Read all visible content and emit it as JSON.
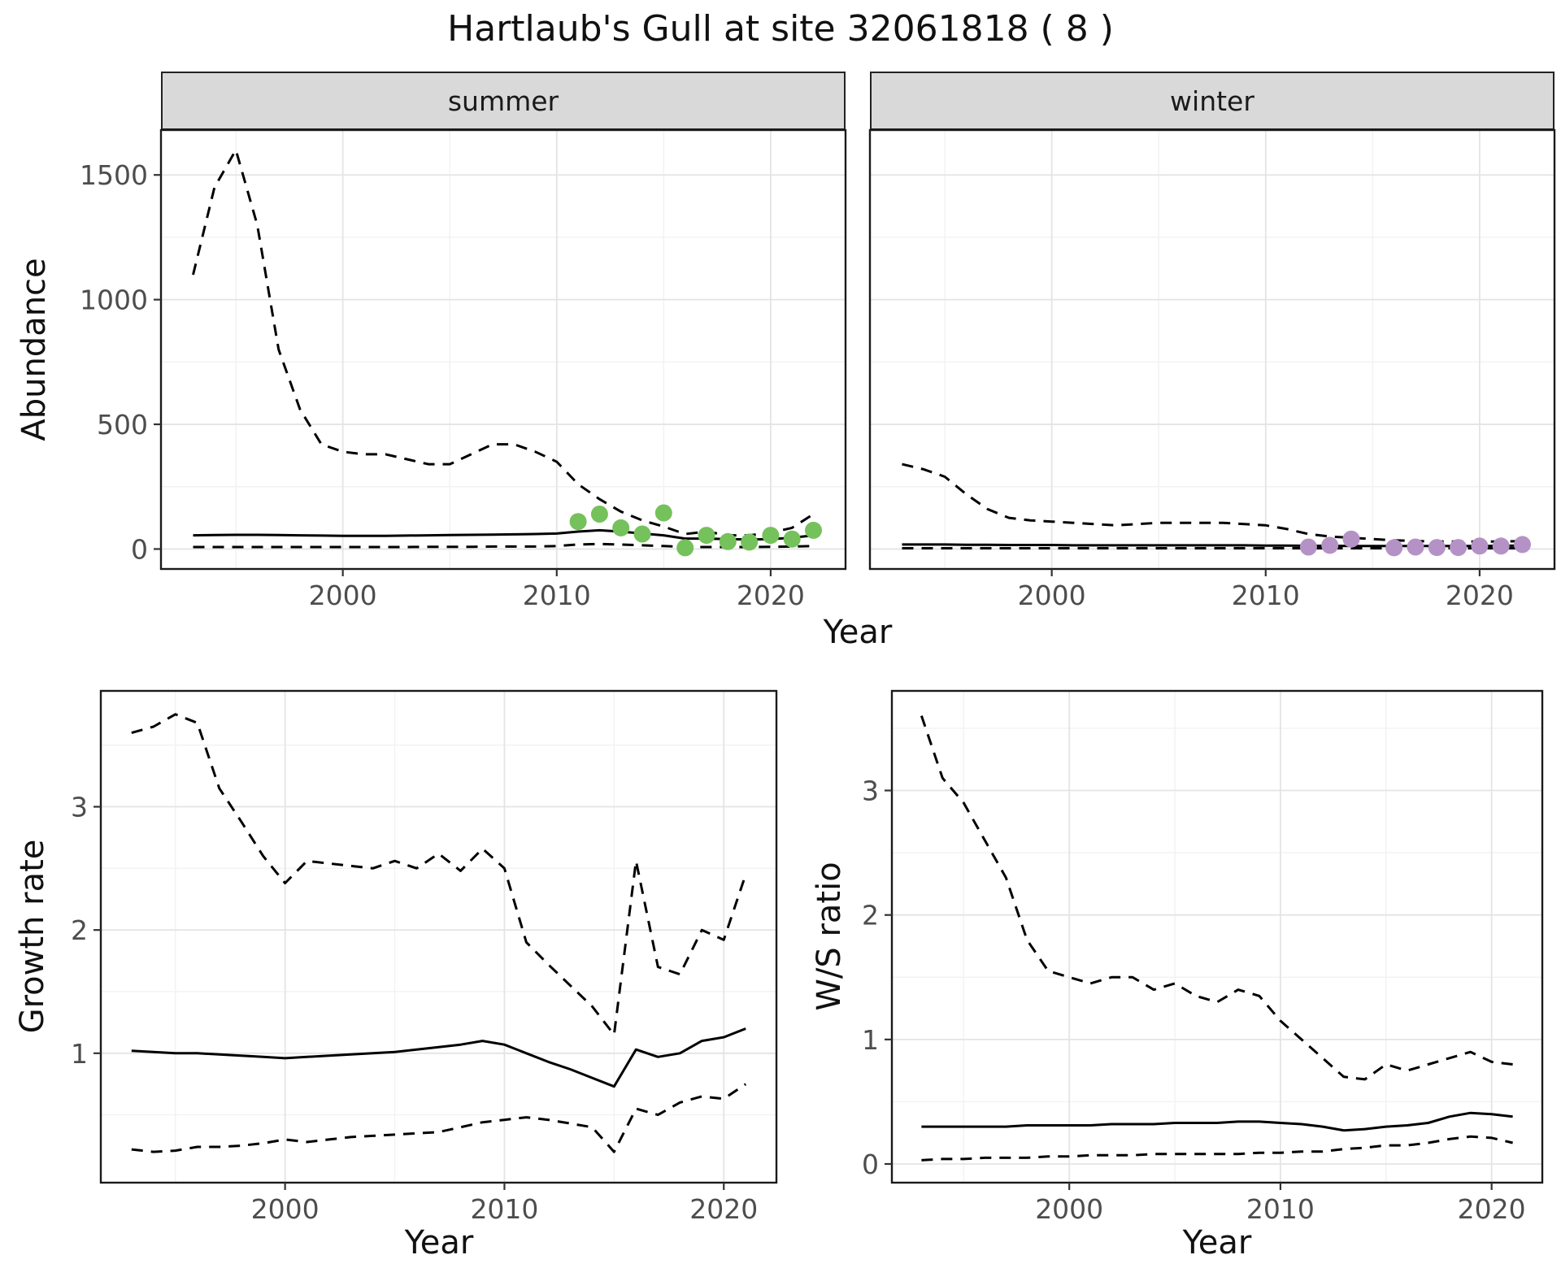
{
  "title": "Hartlaub's Gull at site 32061818 ( 8 )",
  "colors": {
    "summer_points": "#75c15c",
    "winter_points": "#b592c6",
    "lines": "#000000",
    "strip_background": "#d9d9d9"
  },
  "chart_data": [
    {
      "id": "summer",
      "type": "line",
      "facet_label": "summer",
      "xlabel": "Year",
      "ylabel": "Abundance",
      "xlim": [
        1991.5,
        2023.5
      ],
      "ylim": [
        -80,
        1680
      ],
      "xticks": [
        2000,
        2010,
        2020
      ],
      "yticks": [
        0,
        500,
        1000,
        1500
      ],
      "xticks_minor": [
        1995,
        2005,
        2015
      ],
      "yticks_minor": [
        250,
        750,
        1250
      ],
      "x": [
        1993,
        1994,
        1995,
        1996,
        1997,
        1998,
        1999,
        2000,
        2001,
        2002,
        2003,
        2004,
        2005,
        2006,
        2007,
        2008,
        2009,
        2010,
        2011,
        2012,
        2013,
        2014,
        2015,
        2016,
        2017,
        2018,
        2019,
        2020,
        2021,
        2022
      ],
      "series": [
        {
          "name": "upper_95ci",
          "style": "dashed",
          "values": [
            1100,
            1450,
            1600,
            1300,
            800,
            560,
            420,
            390,
            380,
            380,
            360,
            340,
            340,
            380,
            420,
            420,
            390,
            350,
            260,
            200,
            150,
            115,
            90,
            60,
            70,
            55,
            55,
            65,
            85,
            140
          ]
        },
        {
          "name": "median",
          "style": "solid",
          "values": [
            55,
            56,
            57,
            57,
            56,
            55,
            54,
            53,
            53,
            53,
            54,
            55,
            56,
            57,
            58,
            59,
            60,
            62,
            70,
            75,
            70,
            62,
            55,
            42,
            42,
            40,
            38,
            40,
            45,
            55
          ]
        },
        {
          "name": "lower_95ci",
          "style": "dashed",
          "values": [
            8,
            8,
            8,
            8,
            8,
            8,
            8,
            8,
            8,
            8,
            8,
            9,
            9,
            9,
            10,
            10,
            10,
            12,
            18,
            20,
            18,
            15,
            12,
            8,
            8,
            8,
            8,
            9,
            10,
            12
          ]
        }
      ],
      "points": {
        "name": "observed_counts",
        "color": "#75c15c",
        "x": [
          2011,
          2012,
          2013,
          2014,
          2015,
          2016,
          2017,
          2018,
          2019,
          2020,
          2021,
          2022
        ],
        "y": [
          110,
          140,
          85,
          60,
          145,
          5,
          55,
          30,
          28,
          55,
          40,
          75
        ]
      }
    },
    {
      "id": "winter",
      "type": "line",
      "facet_label": "winter",
      "xlabel": "Year",
      "ylabel": "Abundance",
      "xlim": [
        1991.5,
        2023.5
      ],
      "ylim": [
        -80,
        1680
      ],
      "xticks": [
        2000,
        2010,
        2020
      ],
      "yticks": [
        0,
        500,
        1000,
        1500
      ],
      "xticks_minor": [
        1995,
        2005,
        2015
      ],
      "yticks_minor": [
        250,
        750,
        1250
      ],
      "x": [
        1993,
        1994,
        1995,
        1996,
        1997,
        1998,
        1999,
        2000,
        2001,
        2002,
        2003,
        2004,
        2005,
        2006,
        2007,
        2008,
        2009,
        2010,
        2011,
        2012,
        2013,
        2014,
        2015,
        2016,
        2017,
        2018,
        2019,
        2020,
        2021,
        2022
      ],
      "series": [
        {
          "name": "upper_95ci",
          "style": "dashed",
          "values": [
            340,
            320,
            290,
            220,
            160,
            125,
            115,
            110,
            105,
            100,
            95,
            100,
            105,
            105,
            105,
            105,
            100,
            95,
            80,
            60,
            50,
            45,
            40,
            35,
            32,
            30,
            30,
            30,
            30,
            32
          ]
        },
        {
          "name": "median",
          "style": "solid",
          "values": [
            18,
            18,
            18,
            17,
            17,
            16,
            16,
            16,
            15,
            15,
            15,
            15,
            15,
            15,
            15,
            15,
            15,
            14,
            14,
            13,
            13,
            12,
            12,
            12,
            12,
            12,
            12,
            12,
            13,
            14
          ]
        },
        {
          "name": "lower_95ci",
          "style": "dashed",
          "values": [
            3,
            3,
            3,
            3,
            3,
            3,
            3,
            3,
            3,
            3,
            3,
            3,
            3,
            3,
            3,
            3,
            3,
            3,
            3,
            3,
            3,
            3,
            3,
            3,
            3,
            3,
            3,
            3,
            3,
            3
          ]
        }
      ],
      "points": {
        "name": "observed_counts",
        "color": "#b592c6",
        "x": [
          2012,
          2013,
          2014,
          2016,
          2017,
          2018,
          2019,
          2020,
          2021,
          2022
        ],
        "y": [
          8,
          15,
          40,
          5,
          8,
          6,
          6,
          12,
          12,
          18
        ]
      }
    },
    {
      "id": "growth",
      "type": "line",
      "xlabel": "Year",
      "ylabel": "Growth rate",
      "xlim": [
        1991.6,
        2022.4
      ],
      "ylim": [
        -0.05,
        3.94
      ],
      "xticks": [
        2000,
        2010,
        2020
      ],
      "yticks": [
        1,
        2,
        3
      ],
      "xticks_minor": [
        1995,
        2005,
        2015
      ],
      "yticks_minor": [
        0.5,
        1.5,
        2.5,
        3.5
      ],
      "x": [
        1993,
        1994,
        1995,
        1996,
        1997,
        1998,
        1999,
        2000,
        2001,
        2002,
        2003,
        2004,
        2005,
        2006,
        2007,
        2008,
        2009,
        2010,
        2011,
        2012,
        2013,
        2014,
        2015,
        2016,
        2017,
        2018,
        2019,
        2020,
        2021
      ],
      "series": [
        {
          "name": "upper_95ci",
          "style": "dashed",
          "values": [
            3.6,
            3.65,
            3.75,
            3.68,
            3.15,
            2.88,
            2.6,
            2.38,
            2.56,
            2.54,
            2.52,
            2.5,
            2.56,
            2.5,
            2.62,
            2.48,
            2.66,
            2.5,
            1.9,
            1.72,
            1.55,
            1.38,
            1.15,
            2.56,
            1.7,
            1.64,
            2.0,
            1.92,
            2.45
          ]
        },
        {
          "name": "median",
          "style": "solid",
          "values": [
            1.02,
            1.01,
            1.0,
            1.0,
            0.99,
            0.98,
            0.97,
            0.96,
            0.97,
            0.98,
            0.99,
            1.0,
            1.01,
            1.03,
            1.05,
            1.07,
            1.1,
            1.07,
            1.0,
            0.93,
            0.87,
            0.8,
            0.73,
            1.03,
            0.97,
            1.0,
            1.1,
            1.13,
            1.2
          ]
        },
        {
          "name": "lower_95ci",
          "style": "dashed",
          "values": [
            0.22,
            0.2,
            0.21,
            0.24,
            0.24,
            0.25,
            0.27,
            0.3,
            0.28,
            0.3,
            0.32,
            0.33,
            0.34,
            0.35,
            0.36,
            0.4,
            0.44,
            0.46,
            0.48,
            0.46,
            0.43,
            0.4,
            0.2,
            0.55,
            0.5,
            0.6,
            0.65,
            0.63,
            0.75
          ]
        }
      ]
    },
    {
      "id": "ws",
      "type": "line",
      "xlabel": "Year",
      "ylabel": "W/S ratio",
      "xlim": [
        1991.6,
        2022.4
      ],
      "ylim": [
        -0.15,
        3.8
      ],
      "xticks": [
        2000,
        2010,
        2020
      ],
      "yticks": [
        0,
        1,
        2,
        3
      ],
      "xticks_minor": [
        1995,
        2005,
        2015
      ],
      "yticks_minor": [
        0.5,
        1.5,
        2.5,
        3.5
      ],
      "x": [
        1993,
        1994,
        1995,
        1996,
        1997,
        1998,
        1999,
        2000,
        2001,
        2002,
        2003,
        2004,
        2005,
        2006,
        2007,
        2008,
        2009,
        2010,
        2011,
        2012,
        2013,
        2014,
        2015,
        2016,
        2017,
        2018,
        2019,
        2020,
        2021
      ],
      "series": [
        {
          "name": "upper_95ci",
          "style": "dashed",
          "values": [
            3.6,
            3.1,
            2.9,
            2.6,
            2.3,
            1.8,
            1.55,
            1.5,
            1.45,
            1.5,
            1.5,
            1.4,
            1.45,
            1.35,
            1.3,
            1.4,
            1.35,
            1.15,
            1.0,
            0.85,
            0.7,
            0.68,
            0.8,
            0.75,
            0.8,
            0.85,
            0.9,
            0.82,
            0.8
          ]
        },
        {
          "name": "median",
          "style": "solid",
          "values": [
            0.3,
            0.3,
            0.3,
            0.3,
            0.3,
            0.31,
            0.31,
            0.31,
            0.31,
            0.32,
            0.32,
            0.32,
            0.33,
            0.33,
            0.33,
            0.34,
            0.34,
            0.33,
            0.32,
            0.3,
            0.27,
            0.28,
            0.3,
            0.31,
            0.33,
            0.38,
            0.41,
            0.4,
            0.38
          ]
        },
        {
          "name": "lower_95ci",
          "style": "dashed",
          "values": [
            0.03,
            0.04,
            0.04,
            0.05,
            0.05,
            0.05,
            0.06,
            0.06,
            0.07,
            0.07,
            0.07,
            0.08,
            0.08,
            0.08,
            0.08,
            0.08,
            0.09,
            0.09,
            0.1,
            0.1,
            0.12,
            0.13,
            0.15,
            0.15,
            0.17,
            0.2,
            0.22,
            0.21,
            0.17
          ]
        }
      ]
    }
  ]
}
